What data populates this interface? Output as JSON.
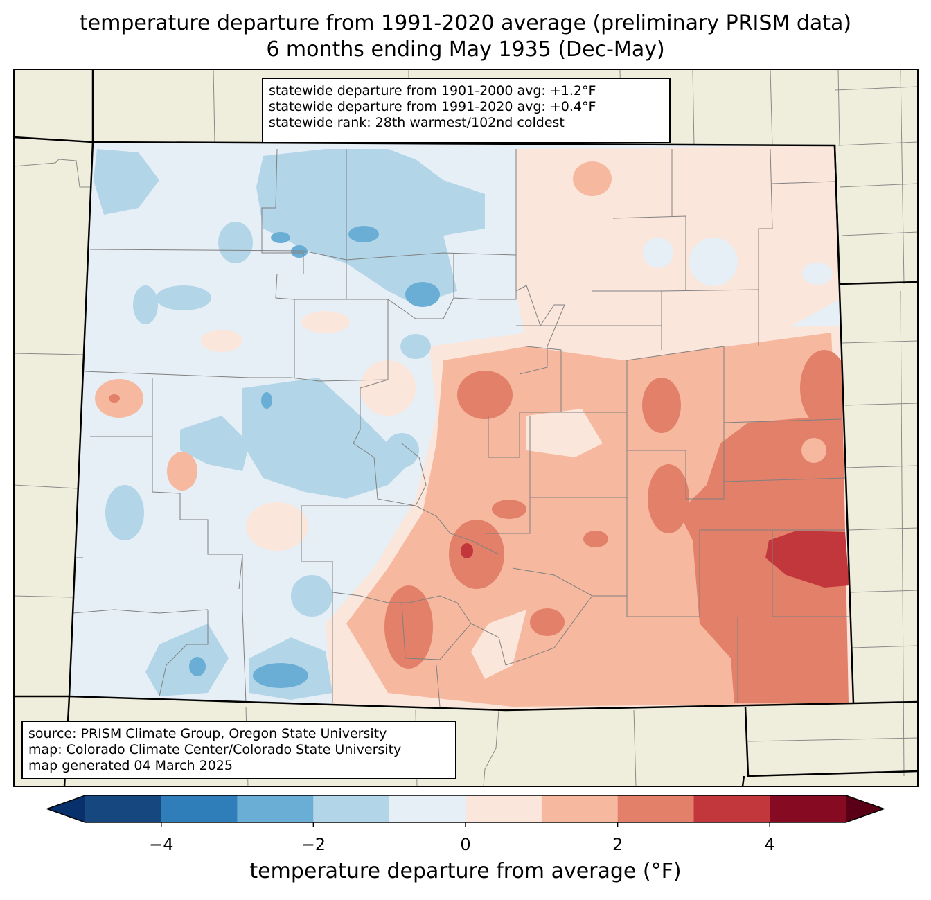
{
  "title": {
    "line1": "temperature departure from 1991-2020 average (preliminary PRISM data)",
    "line2": "6 months ending May 1935 (Dec-May)"
  },
  "stats": {
    "line1": "statewide departure from 1901-2000 avg: +1.2°F",
    "line2": "statewide departure from 1991-2020 avg: +0.4°F",
    "line3": "statewide rank: 28th warmest/102nd coldest"
  },
  "source": {
    "line1": "source: PRISM Climate Group, Oregon State University",
    "line2": "map: Colorado Climate Center/Colorado State University",
    "line3": "map generated 04 March 2025"
  },
  "colorbar": {
    "label": "temperature departure from average (°F)",
    "ticks": [
      "−4",
      "−2",
      "0",
      "2",
      "4"
    ],
    "tick_values": [
      -4,
      -2,
      0,
      2,
      4
    ],
    "bounds": [
      -5,
      -4,
      -3,
      -2,
      -1,
      0,
      1,
      2,
      3,
      4,
      5
    ],
    "colors": [
      "#08306b",
      "#16477f",
      "#2f7db9",
      "#6aaed6",
      "#b2d5e8",
      "#e6eef6",
      "#fbe6dc",
      "#f6b89e",
      "#e2806a",
      "#c1373b",
      "#850a22",
      "#5a0016"
    ]
  },
  "map_colors": {
    "land": "#efeedc",
    "neutral_cool": "#e6eef6",
    "cool1": "#b2d5e8",
    "cool2": "#6aaed6",
    "warm1": "#fbe6dc",
    "warm2": "#f6b89e",
    "warm3": "#e2806a",
    "warm4": "#c1373b"
  }
}
